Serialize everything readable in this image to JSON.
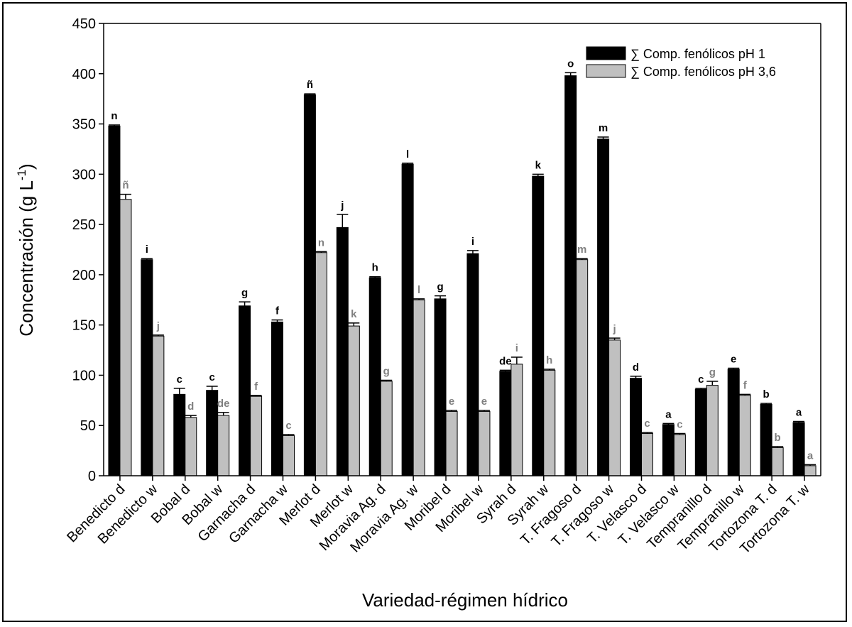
{
  "chart_data": {
    "type": "bar",
    "title": "",
    "xlabel": "Variedad-régimen hídrico",
    "ylabel_main": "Concentración (g L",
    "ylabel_sup": "-1",
    "ylabel_close": ")",
    "ylim": [
      0,
      450
    ],
    "yticks": [
      "0",
      "50",
      "100",
      "150",
      "200",
      "250",
      "300",
      "350",
      "400",
      "450"
    ],
    "legend_position": "top-right",
    "grid": false,
    "categories": [
      "Benedicto d",
      "Benedicto w",
      "Bobal d",
      "Bobal w",
      "Garnacha d",
      "Garnacha w",
      "Merlot d",
      "Merlot w",
      "Moravia Ag. d",
      "Moravia Ag. w",
      "Moribel d",
      "Moribel w",
      "Syrah d",
      "Syrah w",
      "T. Fragoso d",
      "T. Fragoso w",
      "T. Velasco d",
      "T. Velasco w",
      "Tempranillo d",
      "Tempranillo w",
      "Tortozona T. d",
      "Tortozona T. w"
    ],
    "series": [
      {
        "name": "∑ Comp. fenólicos pH 1",
        "color": "#000000",
        "values": [
          348,
          215,
          81,
          85,
          169,
          153,
          379,
          247,
          197,
          310,
          176,
          221,
          104,
          298,
          398,
          335,
          97,
          51,
          86,
          106,
          71,
          53
        ],
        "errors": [
          1,
          1,
          6,
          4,
          4,
          2,
          1,
          13,
          1,
          1,
          3,
          3,
          1,
          2,
          3,
          2,
          2,
          1,
          1,
          1,
          1,
          1
        ],
        "letters": [
          "n",
          "i",
          "c",
          "c",
          "g",
          "f",
          "ñ",
          "j",
          "h",
          "l",
          "g",
          "i",
          "de",
          "k",
          "o",
          "m",
          "d",
          "a",
          "c",
          "e",
          "b",
          "a"
        ]
      },
      {
        "name": "∑ Comp. fenólicos pH 3,6",
        "color": "#c0c0c0",
        "values": [
          275,
          139,
          58,
          60,
          79,
          40,
          222,
          149,
          94,
          175,
          64,
          64,
          111,
          105,
          215,
          135,
          42,
          41,
          90,
          80,
          28,
          10
        ],
        "errors": [
          5,
          1,
          2,
          3,
          1,
          1,
          1,
          3,
          1,
          1,
          1,
          1,
          7,
          1,
          1,
          2,
          1,
          1,
          4,
          1,
          1,
          1
        ],
        "letters": [
          "ñ",
          "j",
          "d",
          "de",
          "f",
          "c",
          "n",
          "k",
          "g",
          "l",
          "e",
          "e",
          "i",
          "h",
          "m",
          "j",
          "c",
          "c",
          "g",
          "f",
          "b",
          "a"
        ]
      }
    ]
  }
}
